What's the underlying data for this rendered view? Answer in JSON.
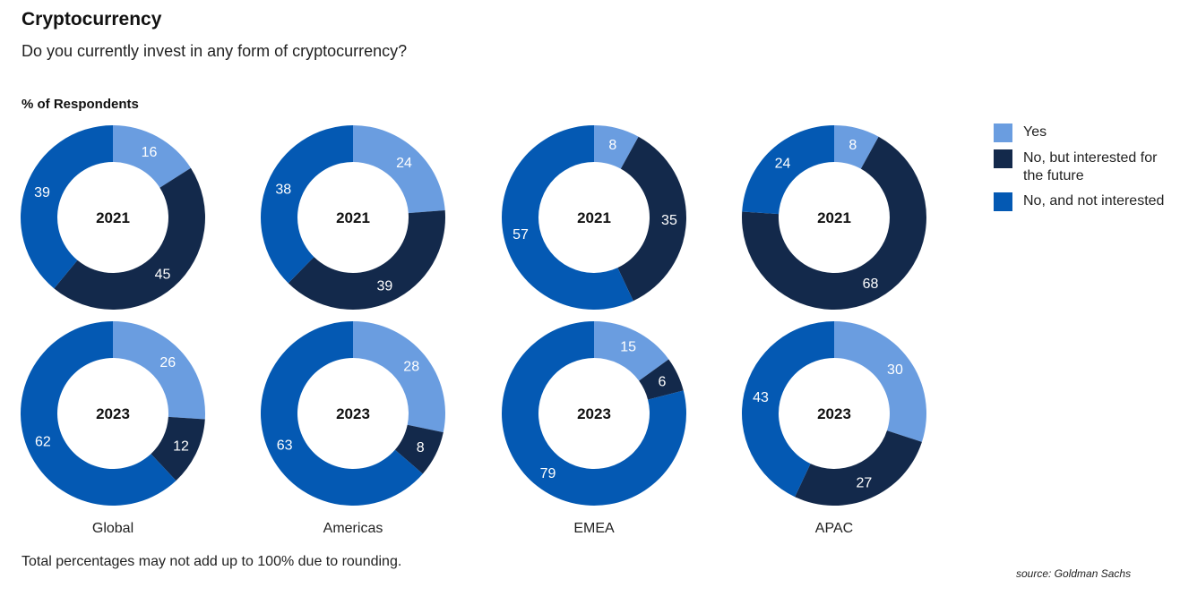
{
  "title": "Cryptocurrency",
  "subtitle": "Do you currently invest in any form of cryptocurrency?",
  "ylabel": "% of Respondents",
  "footnote": "Total percentages may not add up to 100% due to rounding.",
  "source": "source: Goldman Sachs",
  "colors": {
    "yes": "#6a9de0",
    "no_interested": "#13294b",
    "no_not_interested": "#0459b3"
  },
  "legend": [
    {
      "key": "yes",
      "label": "Yes"
    },
    {
      "key": "no_interested",
      "label": "No, but interested for the future"
    },
    {
      "key": "no_not_interested",
      "label": "No, and not interested"
    }
  ],
  "chart_data": {
    "type": "pie",
    "subtype": "donut",
    "series": [
      {
        "key": "yes",
        "name": "Yes"
      },
      {
        "key": "no_interested",
        "name": "No, but interested for the future"
      },
      {
        "key": "no_not_interested",
        "name": "No, and not interested"
      }
    ],
    "regions": [
      "Global",
      "Americas",
      "EMEA",
      "APAC"
    ],
    "years": [
      "2021",
      "2023"
    ],
    "donuts": [
      {
        "region": "Global",
        "year": "2021",
        "values": [
          16,
          45,
          39
        ]
      },
      {
        "region": "Americas",
        "year": "2021",
        "values": [
          24,
          39,
          38
        ]
      },
      {
        "region": "EMEA",
        "year": "2021",
        "values": [
          8,
          35,
          57
        ]
      },
      {
        "region": "APAC",
        "year": "2021",
        "values": [
          8,
          68,
          24
        ]
      },
      {
        "region": "Global",
        "year": "2023",
        "values": [
          26,
          12,
          62
        ]
      },
      {
        "region": "Americas",
        "year": "2023",
        "values": [
          28,
          8,
          63
        ]
      },
      {
        "region": "EMEA",
        "year": "2023",
        "values": [
          15,
          6,
          79
        ]
      },
      {
        "region": "APAC",
        "year": "2023",
        "values": [
          30,
          27,
          43
        ]
      }
    ]
  }
}
